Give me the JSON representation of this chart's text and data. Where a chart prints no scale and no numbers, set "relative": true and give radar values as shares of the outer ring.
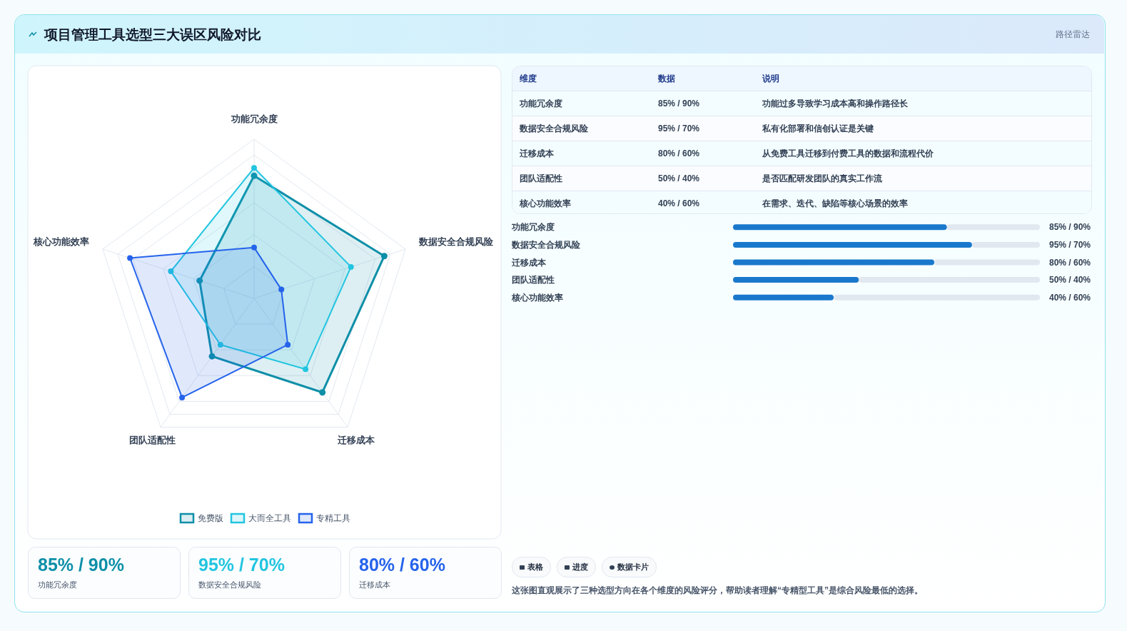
{
  "chart_data": [
    {
      "type": "other",
      "annotations": [
        "项目管理工具选型三大误区风险对比",
        "路径雷达"
      ]
    },
    {
      "type": "radar",
      "categories": [
        "功能冗余度",
        "数据安全合规风险",
        "迁移成本",
        "团队适配性",
        "核心功能效率"
      ],
      "relative": true,
      "grid": true,
      "legend": "bottom",
      "marker": "circle",
      "series": [
        {
          "name": "免费版",
          "color": "#0e8fa8",
          "values": [
            0.77,
            0.86,
            0.73,
            0.45,
            0.36
          ]
        },
        {
          "name": "大而全工具",
          "color": "#22c5e0",
          "values": [
            0.82,
            0.64,
            0.55,
            0.36,
            0.55
          ]
        },
        {
          "name": "专精工具",
          "color": "#2563eb",
          "values": [
            0.32,
            0.18,
            0.36,
            0.77,
            0.82
          ]
        }
      ]
    },
    {
      "type": "bar",
      "orientation": "horizontal",
      "color": "#1a78cc",
      "categories": [
        "功能冗余度",
        "数据安全合规风险",
        "迁移成本",
        "团队适配性",
        "核心功能效率"
      ],
      "values": [
        85,
        95,
        80,
        50,
        40
      ],
      "xlim": [
        0,
        122
      ],
      "tick_labels": false,
      "value_labels": [
        "85% / 90%",
        "95% / 70%",
        "80% / 60%",
        "50% / 40%",
        "40% / 60%"
      ]
    },
    {
      "type": "other",
      "annotations": [
        "维度",
        "数据",
        "说明",
        "功能冗余度",
        "85% / 90%",
        "功能过多导致学习成本高和操作路径长",
        "数据安全合规风险",
        "95% / 70%",
        "私有化部署和信创认证是关键",
        "迁移成本",
        "80% / 60%",
        "从免费工具迁移到付费工具的数据和流程代价",
        "团队适配性",
        "50% / 40%",
        "是否匹配研发团队的真实工作流",
        "核心功能效率",
        "40% / 60%",
        "在需求、迭代、缺陷等核心场景的效率"
      ]
    },
    {
      "type": "other",
      "annotations": [
        "85% / 90%",
        "功能冗余度",
        "95% / 70%",
        "数据安全合规风险",
        "80% / 60%",
        "迁移成本"
      ]
    },
    {
      "type": "other",
      "annotations": [
        "表格",
        "进度",
        "数据卡片",
        "这张图直观展示了三种选型方向在各个维度的风险评分，帮助读者理解“专精型工具”是综合风险最低的选择。"
      ]
    }
  ]
}
